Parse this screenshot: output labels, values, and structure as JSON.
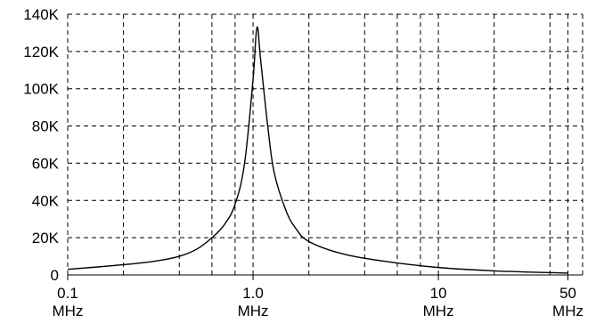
{
  "chart_data": {
    "type": "line",
    "title": "",
    "xlabel": "",
    "ylabel": "",
    "x_scale": "log",
    "xlim": [
      0.1,
      60
    ],
    "ylim": [
      0,
      140000
    ],
    "grid": true,
    "y_ticks": [
      {
        "value": 0,
        "label": "0"
      },
      {
        "value": 20000,
        "label": "20K"
      },
      {
        "value": 40000,
        "label": "40K"
      },
      {
        "value": 60000,
        "label": "60K"
      },
      {
        "value": 80000,
        "label": "80K"
      },
      {
        "value": 100000,
        "label": "100K"
      },
      {
        "value": 120000,
        "label": "120K"
      },
      {
        "value": 140000,
        "label": "140K"
      }
    ],
    "x_ticks": [
      {
        "value": 0.1,
        "label": "0.1",
        "unit": "MHz"
      },
      {
        "value": 1.0,
        "label": "1.0",
        "unit": "MHz"
      },
      {
        "value": 10,
        "label": "10",
        "unit": "MHz"
      },
      {
        "value": 50,
        "label": "50",
        "unit": "MHz"
      }
    ],
    "x_gridlines": [
      0.2,
      0.4,
      0.6,
      0.8,
      2,
      4,
      6,
      8,
      20,
      40
    ],
    "series": [
      {
        "x": [
          0.1,
          0.2,
          0.3,
          0.4,
          0.5,
          0.6,
          0.7,
          0.8,
          0.9,
          1.0,
          1.05,
          1.1,
          1.2,
          1.3,
          1.5,
          1.7,
          2,
          3,
          5,
          10,
          20,
          50
        ],
        "y": [
          3000,
          5500,
          7500,
          10000,
          14000,
          20000,
          27000,
          38000,
          60000,
          105000,
          133000,
          115000,
          80000,
          55000,
          35000,
          25000,
          18000,
          11500,
          7500,
          4000,
          2200,
          1000
        ]
      }
    ]
  }
}
